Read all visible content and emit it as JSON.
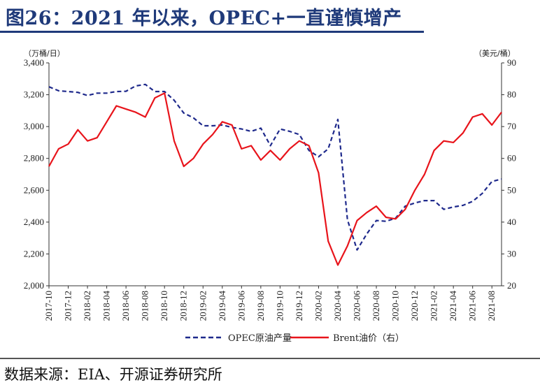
{
  "header": {
    "title": "图26：2021 年以来，OPEC+一直谨慎增产"
  },
  "footer": {
    "source": "数据来源：EIA、开源证券研究所"
  },
  "colors": {
    "title": "#1f3a7a",
    "opec_series": "#1f2a8c",
    "brent_series": "#e8141b"
  },
  "chart_data": {
    "type": "line",
    "left_axis_unit": "（万桶/日）",
    "right_axis_unit": "（美元/桶）",
    "left_ylim": [
      2000,
      3400
    ],
    "left_yticks": [
      2000,
      2200,
      2400,
      2600,
      2800,
      3000,
      3200,
      3400
    ],
    "right_ylim": [
      20,
      90
    ],
    "right_yticks": [
      20,
      30,
      40,
      50,
      60,
      70,
      80,
      90
    ],
    "x": [
      "2017-10",
      "2017-11",
      "2017-12",
      "2018-01",
      "2018-02",
      "2018-03",
      "2018-04",
      "2018-05",
      "2018-06",
      "2018-07",
      "2018-08",
      "2018-09",
      "2018-10",
      "2018-11",
      "2018-12",
      "2019-01",
      "2019-02",
      "2019-03",
      "2019-04",
      "2019-05",
      "2019-06",
      "2019-07",
      "2019-08",
      "2019-09",
      "2019-10",
      "2019-11",
      "2019-12",
      "2020-01",
      "2020-02",
      "2020-03",
      "2020-04",
      "2020-05",
      "2020-06",
      "2020-07",
      "2020-08",
      "2020-09",
      "2020-10",
      "2020-11",
      "2020-12",
      "2021-01",
      "2021-02",
      "2021-03",
      "2021-04",
      "2021-05",
      "2021-06",
      "2021-07",
      "2021-08",
      "2021-09"
    ],
    "x_tick_labels": [
      "2017-10",
      "2017-12",
      "2018-02",
      "2018-04",
      "2018-06",
      "2018-08",
      "2018-10",
      "2018-12",
      "2019-02",
      "2019-04",
      "2019-06",
      "2019-08",
      "2019-10",
      "2019-12",
      "2020-02",
      "2020-04",
      "2020-06",
      "2020-08",
      "2020-10",
      "2020-12",
      "2021-02",
      "2021-04",
      "2021-06",
      "2021-08"
    ],
    "grid": false,
    "legend_position": "bottom",
    "series": [
      {
        "name": "OPEC原油产量",
        "axis": "left",
        "style": "dashed",
        "values": [
          3250,
          3225,
          3220,
          3215,
          3195,
          3210,
          3210,
          3220,
          3222,
          3255,
          3265,
          3220,
          3220,
          3165,
          3085,
          3055,
          3005,
          3005,
          3010,
          2995,
          2985,
          2970,
          2990,
          2880,
          2985,
          2970,
          2950,
          2850,
          2810,
          2860,
          3045,
          2415,
          2225,
          2325,
          2410,
          2405,
          2425,
          2500,
          2520,
          2535,
          2535,
          2480,
          2495,
          2505,
          2530,
          2580,
          2655,
          2670
        ]
      },
      {
        "name": "Brent油价（右）",
        "axis": "right",
        "style": "solid",
        "values": [
          57.5,
          63.0,
          64.5,
          69.0,
          65.5,
          66.5,
          71.5,
          76.5,
          75.5,
          74.5,
          73.0,
          79.0,
          80.5,
          65.5,
          57.5,
          60.0,
          64.5,
          67.5,
          71.5,
          70.5,
          63.0,
          64.0,
          59.5,
          62.5,
          59.5,
          63.0,
          65.5,
          64.0,
          55.5,
          34.0,
          26.5,
          32.5,
          40.5,
          43.0,
          45.0,
          41.5,
          41.0,
          44.0,
          50.0,
          55.0,
          62.5,
          65.5,
          65.0,
          68.0,
          73.0,
          74.0,
          70.5,
          74.5
        ]
      }
    ]
  }
}
